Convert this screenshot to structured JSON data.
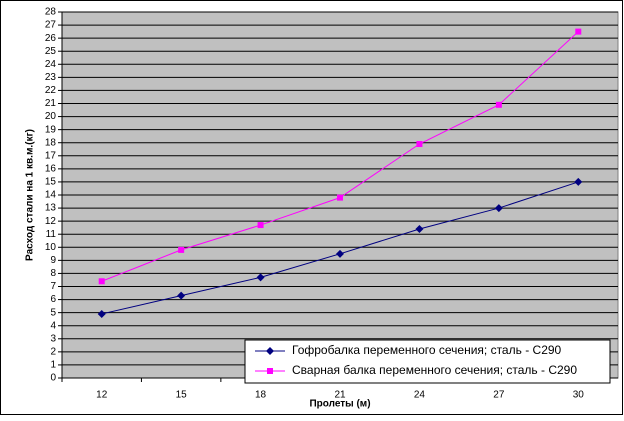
{
  "chart_data": {
    "type": "line",
    "x_label": "Пролеты (м)",
    "y_label": "Расход стали на 1 кв.м.(кг)",
    "categories": [
      "12",
      "15",
      "18",
      "21",
      "24",
      "27",
      "30"
    ],
    "series": [
      {
        "name": "Гофробалка переменного сечения; сталь - С290",
        "color": "#000080",
        "marker": "diamond",
        "values": [
          4.9,
          6.3,
          7.7,
          9.5,
          11.4,
          13.0,
          15.0
        ]
      },
      {
        "name": "Сварная балка переменного сечения; сталь - С290",
        "color": "#ff00ff",
        "marker": "square",
        "values": [
          7.4,
          9.8,
          11.7,
          13.8,
          17.9,
          20.9,
          26.5
        ]
      }
    ],
    "ylim": [
      0,
      28
    ],
    "yticks": [
      0,
      1,
      2,
      3,
      4,
      5,
      6,
      7,
      8,
      9,
      10,
      11,
      12,
      13,
      14,
      15,
      16,
      17,
      18,
      19,
      20,
      21,
      22,
      23,
      24,
      25,
      26,
      27,
      28
    ],
    "grid": true,
    "plot_background": "#c0c0c0",
    "legend_position": "lower right"
  }
}
